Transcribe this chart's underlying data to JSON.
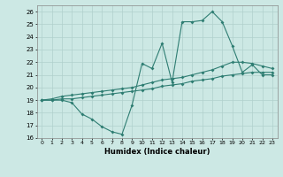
{
  "xlabel": "Humidex (Indice chaleur)",
  "background_color": "#cce8e4",
  "grid_color": "#b0d0cc",
  "line_color": "#2e7d72",
  "xlim": [
    -0.5,
    23.5
  ],
  "ylim": [
    16,
    26.5
  ],
  "xticks": [
    0,
    1,
    2,
    3,
    4,
    5,
    6,
    7,
    8,
    9,
    10,
    11,
    12,
    13,
    14,
    15,
    16,
    17,
    18,
    19,
    20,
    21,
    22,
    23
  ],
  "yticks": [
    16,
    17,
    18,
    19,
    20,
    21,
    22,
    23,
    24,
    25,
    26
  ],
  "line1_x": [
    0,
    1,
    2,
    3,
    4,
    5,
    6,
    7,
    8,
    9,
    10,
    11,
    12,
    13,
    14,
    15,
    16,
    17,
    18,
    19,
    20,
    21,
    22,
    23
  ],
  "line1_y": [
    19.0,
    19.0,
    19.0,
    18.8,
    17.9,
    17.5,
    16.9,
    16.5,
    16.3,
    18.6,
    21.9,
    21.5,
    23.5,
    20.4,
    25.2,
    25.2,
    25.3,
    26.0,
    25.2,
    23.3,
    21.2,
    21.8,
    21.0,
    21.0
  ],
  "line2_x": [
    0,
    1,
    2,
    3,
    4,
    5,
    6,
    7,
    8,
    9,
    10,
    11,
    12,
    13,
    14,
    15,
    16,
    17,
    18,
    19,
    20,
    21,
    22,
    23
  ],
  "line2_y": [
    19.0,
    19.1,
    19.3,
    19.4,
    19.5,
    19.6,
    19.7,
    19.8,
    19.9,
    20.0,
    20.2,
    20.4,
    20.6,
    20.7,
    20.8,
    21.0,
    21.2,
    21.4,
    21.7,
    22.0,
    22.0,
    21.9,
    21.7,
    21.5
  ],
  "line3_x": [
    0,
    1,
    2,
    3,
    4,
    5,
    6,
    7,
    8,
    9,
    10,
    11,
    12,
    13,
    14,
    15,
    16,
    17,
    18,
    19,
    20,
    21,
    22,
    23
  ],
  "line3_y": [
    19.0,
    19.0,
    19.1,
    19.1,
    19.2,
    19.3,
    19.4,
    19.5,
    19.6,
    19.7,
    19.8,
    19.9,
    20.1,
    20.2,
    20.3,
    20.5,
    20.6,
    20.7,
    20.9,
    21.0,
    21.1,
    21.2,
    21.2,
    21.2
  ]
}
